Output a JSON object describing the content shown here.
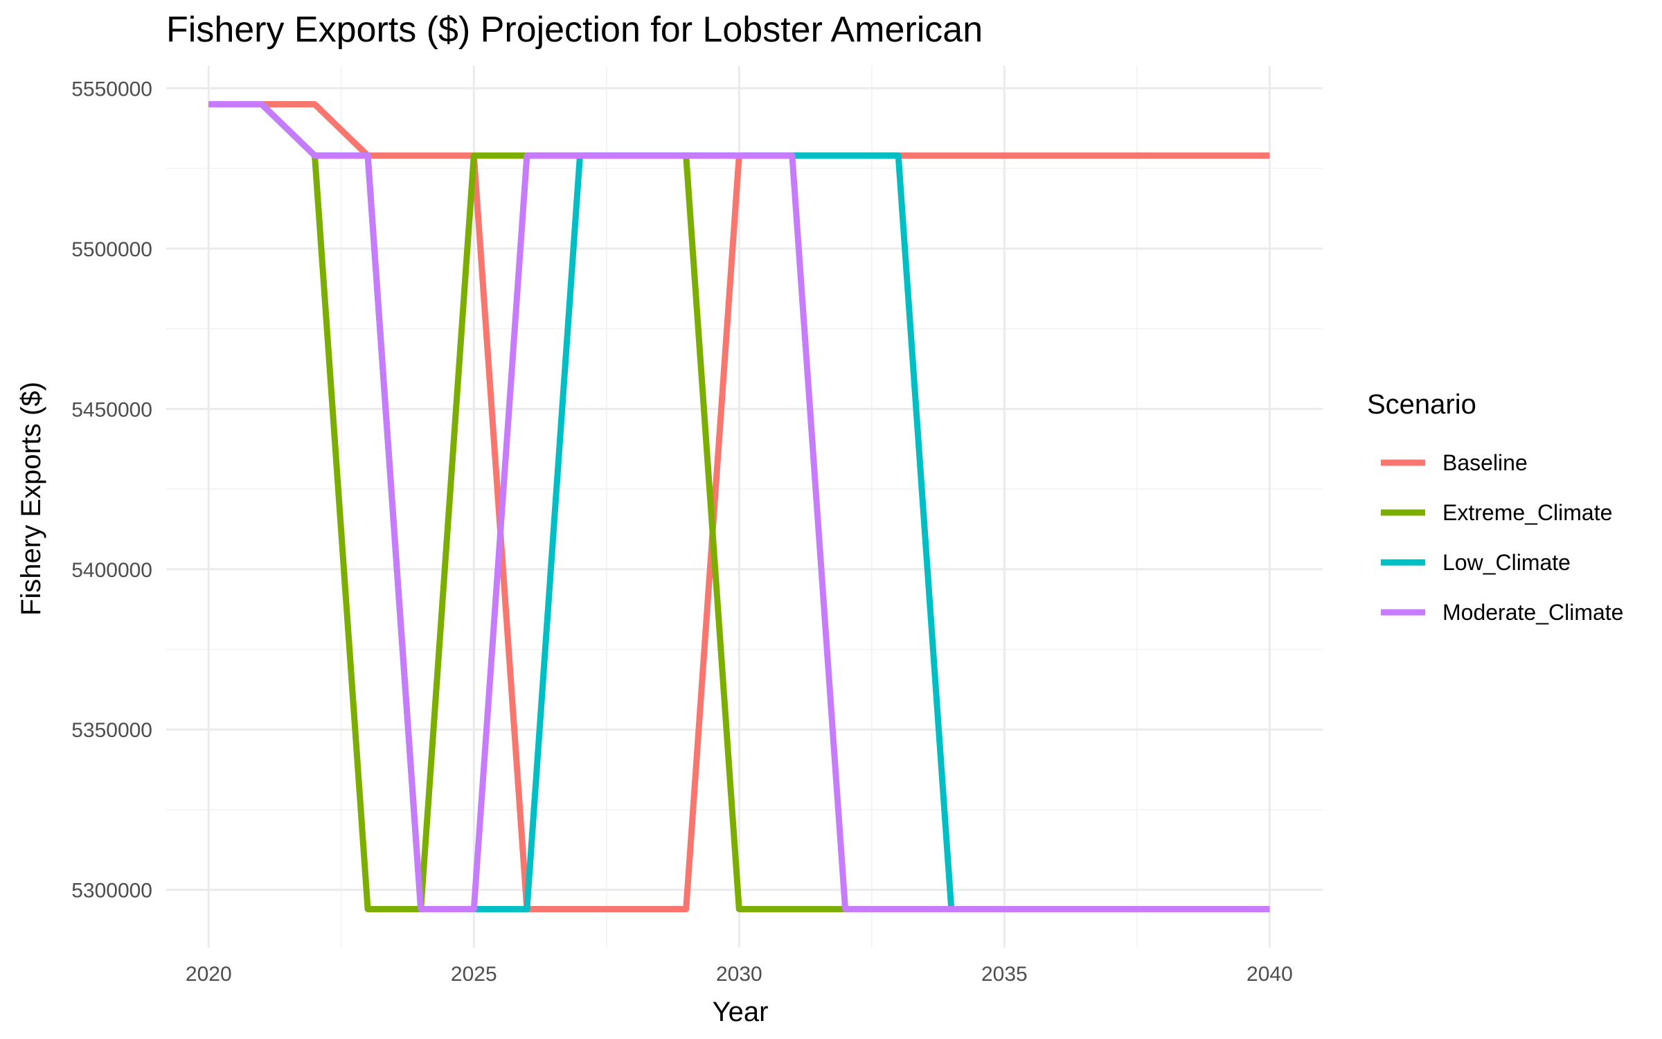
{
  "chart_data": {
    "type": "line",
    "title": "Fishery Exports ($) Projection for Lobster American",
    "xlabel": "Year",
    "ylabel": "Fishery Exports ($)",
    "x": [
      2020,
      2021,
      2022,
      2023,
      2024,
      2025,
      2026,
      2027,
      2028,
      2029,
      2030,
      2031,
      2032,
      2033,
      2034,
      2035,
      2036,
      2037,
      2038,
      2039,
      2040
    ],
    "xlim": [
      2019.2,
      2041.0
    ],
    "ylim": [
      5282000,
      5557000
    ],
    "x_ticks": [
      "2020",
      "2025",
      "2030",
      "2035",
      "2040"
    ],
    "x_tick_values": [
      2020,
      2025,
      2030,
      2035,
      2040
    ],
    "y_ticks": [
      "5300000",
      "5350000",
      "5400000",
      "5450000",
      "5500000",
      "5550000"
    ],
    "y_tick_values": [
      5300000,
      5350000,
      5400000,
      5450000,
      5500000,
      5550000
    ],
    "grid": true,
    "legend": {
      "title": "Scenario",
      "position": "right"
    },
    "series": [
      {
        "name": "Baseline",
        "color": "#F8766D",
        "values": [
          5545000,
          5545000,
          5545000,
          5529000,
          5529000,
          5529000,
          5294000,
          5294000,
          5294000,
          5294000,
          5529000,
          5529000,
          5529000,
          5529000,
          5529000,
          5529000,
          5529000,
          5529000,
          5529000,
          5529000,
          5529000
        ]
      },
      {
        "name": "Extreme_Climate",
        "color": "#7CAE00",
        "values": [
          5545000,
          5545000,
          5529000,
          5294000,
          5294000,
          5529000,
          5529000,
          5529000,
          5529000,
          5529000,
          5294000,
          5294000,
          5294000,
          5294000,
          5294000,
          5294000,
          5294000,
          5294000,
          5294000,
          5294000,
          5294000
        ]
      },
      {
        "name": "Low_Climate",
        "color": "#00BFC4",
        "values": [
          5545000,
          5545000,
          5529000,
          5529000,
          5294000,
          5294000,
          5294000,
          5529000,
          5529000,
          5529000,
          5529000,
          5529000,
          5529000,
          5529000,
          5294000,
          5294000,
          5294000,
          5294000,
          5294000,
          5294000,
          5294000
        ]
      },
      {
        "name": "Moderate_Climate",
        "color": "#C77CFF",
        "values": [
          5545000,
          5545000,
          5529000,
          5529000,
          5294000,
          5294000,
          5529000,
          5529000,
          5529000,
          5529000,
          5529000,
          5529000,
          5294000,
          5294000,
          5294000,
          5294000,
          5294000,
          5294000,
          5294000,
          5294000,
          5294000
        ]
      }
    ]
  }
}
